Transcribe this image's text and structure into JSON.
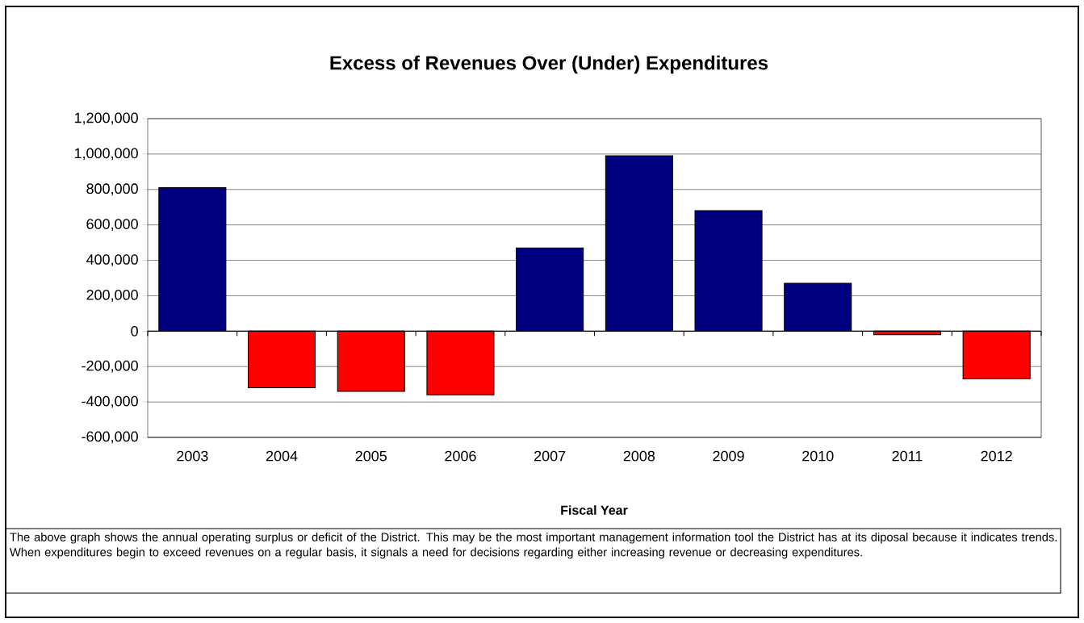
{
  "chart_data": {
    "type": "bar",
    "title": "Excess of Revenues Over (Under) Expenditures",
    "xlabel": "Fiscal Year",
    "categories": [
      "2003",
      "2004",
      "2005",
      "2006",
      "2007",
      "2008",
      "2009",
      "2010",
      "2011",
      "2012"
    ],
    "values": [
      810000,
      -320000,
      -340000,
      -360000,
      470000,
      990000,
      680000,
      270000,
      -20000,
      -270000
    ],
    "colors": [
      "#000080",
      "#ff0000",
      "#ff0000",
      "#ff0000",
      "#000080",
      "#000080",
      "#000080",
      "#000080",
      "#ff0000",
      "#ff0000"
    ],
    "ylim": [
      -600000,
      1200000
    ],
    "yticks": [
      {
        "value": -600000,
        "label": "-600,000"
      },
      {
        "value": -400000,
        "label": "-400,000"
      },
      {
        "value": -200000,
        "label": "-200,000"
      },
      0,
      {
        "value": 200000,
        "label": "200,000"
      },
      {
        "value": 400000,
        "label": "400,000"
      },
      {
        "value": 600000,
        "label": "600,000"
      },
      {
        "value": 800000,
        "label": "800,000"
      },
      {
        "value": 1000000,
        "label": "1,000,000"
      },
      {
        "value": 1200000,
        "label": "1,200,000"
      }
    ],
    "grid": "y",
    "annotations": [
      "The above graph shows the annual operating surplus or deficit of the District.  This may be the most important management  information tool the District has at its diposal because it indicates trends.   When expenditures begin to exceed revenues on a regular basis, it signals a need for decisions regarding either increasing revenue or decreasing expenditures."
    ]
  }
}
